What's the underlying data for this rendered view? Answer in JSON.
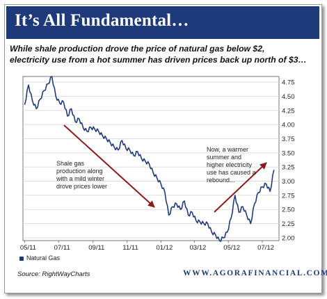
{
  "header": {
    "title": "It’s All Fundamental…",
    "subtitle_line1": "While shale production drove the price of natural gas below $2,",
    "subtitle_line2": "electricity use from a hot summer has driven prices back up north of $3…"
  },
  "footer": {
    "source": "Source: RightWayCharts",
    "brand": "WWW.AGORAFINANCIAL.COM"
  },
  "colors": {
    "header_bg": "#1f3a7a",
    "line": "#1f3a7a",
    "arrow": "#8b1a1a"
  },
  "chart_data": {
    "type": "line",
    "xlabel": "",
    "ylabel": "",
    "x_ticks": [
      "05/11",
      "07/11",
      "09/11",
      "11/11",
      "01/12",
      "03/12",
      "05/12",
      "07/12"
    ],
    "y_ticks": [
      "4.75",
      "4.50",
      "4.25",
      "4.00",
      "3.75",
      "3.50",
      "3.25",
      "3.00",
      "2.75",
      "2.50",
      "2.25",
      "2.00"
    ],
    "ylim": [
      1.95,
      4.85
    ],
    "grid": true,
    "legend": "bottom-left",
    "series": [
      {
        "name": "Natural Gas",
        "x": [
          "2011-05-01",
          "2011-05-08",
          "2011-05-15",
          "2011-05-22",
          "2011-05-29",
          "2011-06-05",
          "2011-06-12",
          "2011-06-19",
          "2011-06-26",
          "2011-07-03",
          "2011-07-10",
          "2011-07-17",
          "2011-07-24",
          "2011-07-31",
          "2011-08-07",
          "2011-08-14",
          "2011-08-21",
          "2011-08-28",
          "2011-09-04",
          "2011-09-11",
          "2011-09-18",
          "2011-09-25",
          "2011-10-02",
          "2011-10-09",
          "2011-10-16",
          "2011-10-23",
          "2011-10-30",
          "2011-11-06",
          "2011-11-13",
          "2011-11-20",
          "2011-11-27",
          "2011-12-04",
          "2011-12-11",
          "2011-12-18",
          "2011-12-25",
          "2012-01-01",
          "2012-01-08",
          "2012-01-15",
          "2012-01-22",
          "2012-01-29",
          "2012-02-05",
          "2012-02-12",
          "2012-02-19",
          "2012-02-26",
          "2012-03-04",
          "2012-03-11",
          "2012-03-18",
          "2012-03-25",
          "2012-04-01",
          "2012-04-08",
          "2012-04-15",
          "2012-04-22",
          "2012-04-29",
          "2012-05-06",
          "2012-05-13",
          "2012-05-20",
          "2012-05-27",
          "2012-06-03",
          "2012-06-10",
          "2012-06-17",
          "2012-06-24",
          "2012-07-01",
          "2012-07-08",
          "2012-07-15",
          "2012-07-22"
        ],
        "values": [
          4.35,
          4.7,
          4.42,
          4.28,
          4.45,
          4.6,
          4.72,
          4.85,
          4.5,
          4.38,
          4.4,
          4.15,
          4.28,
          4.05,
          4.1,
          3.95,
          3.88,
          3.95,
          3.92,
          3.88,
          3.8,
          3.75,
          3.68,
          3.6,
          3.55,
          3.72,
          3.58,
          3.55,
          3.45,
          3.52,
          3.4,
          3.35,
          3.3,
          3.15,
          3.05,
          2.95,
          2.8,
          2.4,
          2.55,
          2.6,
          2.5,
          2.65,
          2.4,
          2.45,
          2.3,
          2.28,
          2.25,
          2.25,
          2.1,
          2.05,
          1.95,
          2.0,
          2.1,
          2.35,
          2.75,
          2.45,
          2.55,
          2.4,
          2.25,
          2.6,
          2.8,
          2.9,
          2.95,
          2.82,
          3.2
        ]
      }
    ],
    "annotations": [
      {
        "text_lines": [
          "Shale gas",
          "production along",
          "with a mild winter",
          "drove prices lower"
        ]
      },
      {
        "text_lines": [
          "Now, a warmer",
          "summer and",
          "higher electricity",
          "use has caused a",
          "rebound..."
        ]
      }
    ]
  }
}
